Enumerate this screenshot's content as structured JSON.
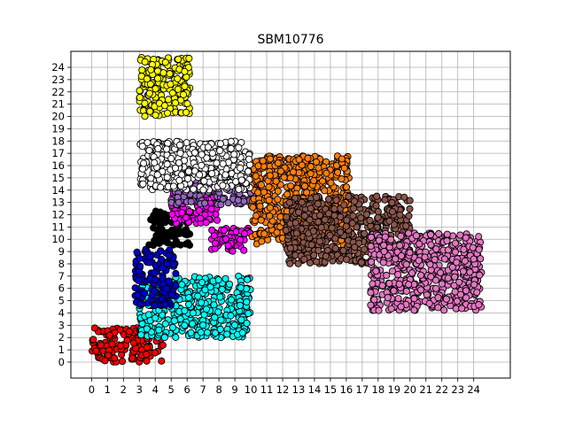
{
  "chart_data": {
    "type": "scatter",
    "title": "SBM10776",
    "xlabel": "",
    "ylabel": "",
    "xlim": [
      -1.3,
      26.3
    ],
    "ylim": [
      -1.3,
      25.3
    ],
    "xticks": [
      0,
      1,
      2,
      3,
      4,
      5,
      6,
      7,
      8,
      9,
      10,
      11,
      12,
      13,
      14,
      15,
      16,
      17,
      18,
      19,
      20,
      21,
      22,
      23,
      24
    ],
    "yticks": [
      0,
      1,
      2,
      3,
      4,
      5,
      6,
      7,
      8,
      9,
      10,
      11,
      12,
      13,
      14,
      15,
      16,
      17,
      18,
      19,
      20,
      21,
      22,
      23,
      24
    ],
    "grid": true,
    "legend": "none",
    "clusters": [
      {
        "color": "#ff0000",
        "x": [
          0,
          4.5
        ],
        "y": [
          0,
          2.8
        ],
        "extent_note": "red"
      },
      {
        "color": "#00ffff",
        "x": [
          3,
          10
        ],
        "y": [
          2,
          7
        ],
        "extent_note": "cyan"
      },
      {
        "color": "#0000cd",
        "x": [
          2.7,
          5.3
        ],
        "y": [
          4.6,
          9.2
        ],
        "extent_note": "blue"
      },
      {
        "color": "#000000",
        "x": [
          3.6,
          6.2
        ],
        "y": [
          9.5,
          12.3
        ],
        "extent_note": "black"
      },
      {
        "color": "#ff00ff",
        "x": [
          5,
          8
        ],
        "y": [
          11.3,
          13.8
        ],
        "extent_note": "magenta"
      },
      {
        "color": "#ff00ff",
        "x": [
          7.5,
          10
        ],
        "y": [
          9,
          11
        ],
        "extent_note": "magenta2"
      },
      {
        "color": "#9467bd",
        "x": [
          5,
          10.5
        ],
        "y": [
          12.8,
          15.8
        ],
        "extent_note": "purple"
      },
      {
        "color": "#ff7f0e",
        "x": [
          10,
          16.3
        ],
        "y": [
          9.5,
          16.8
        ],
        "extent_note": "orange"
      },
      {
        "color": "#8c564b",
        "x": [
          12.2,
          20
        ],
        "y": [
          8,
          13.5
        ],
        "extent_note": "brown"
      },
      {
        "color": "#e377c2",
        "x": [
          17.5,
          24.5
        ],
        "y": [
          4.2,
          10.5
        ],
        "extent_note": "pink"
      },
      {
        "color": "#ffff00",
        "x": [
          3,
          6.2
        ],
        "y": [
          20,
          24.8
        ],
        "extent_note": "yellow"
      },
      {
        "color": "#ffffff",
        "x": [
          3,
          10
        ],
        "y": [
          14,
          18
        ],
        "extent_note": "white"
      }
    ]
  }
}
